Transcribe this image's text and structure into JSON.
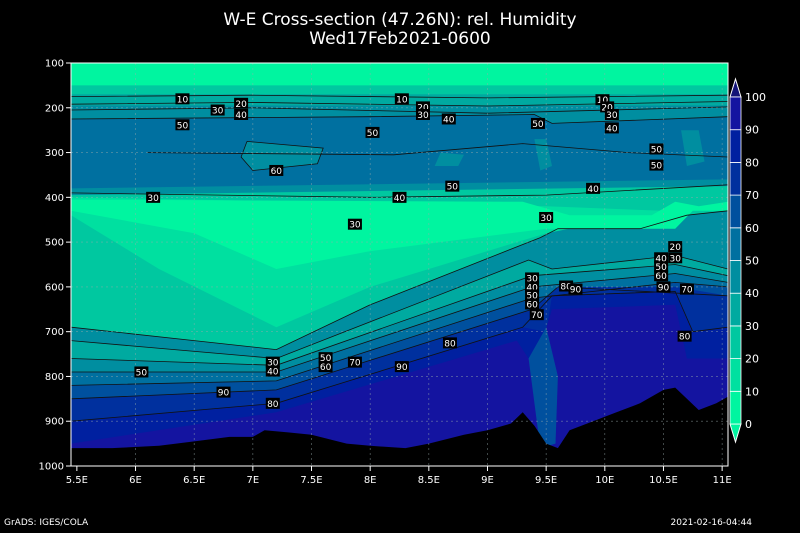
{
  "chart_data": {
    "type": "contour",
    "title": "W-E Cross-section (47.26N): rel. Humidity",
    "subtitle": "Wed17Feb2021-0600",
    "x_ticks": [
      "5.5E",
      "6E",
      "6.5E",
      "7E",
      "7.5E",
      "8E",
      "8.5E",
      "9E",
      "9.5E",
      "10E",
      "10.5E",
      "11E"
    ],
    "xlim": [
      5.45,
      11.05
    ],
    "y_ticks": [
      100,
      200,
      300,
      400,
      500,
      600,
      700,
      800,
      900,
      1000
    ],
    "ylim": [
      100,
      1000
    ],
    "y_axis": "pressure (hPa), increasing downward",
    "colorbar": {
      "levels": [
        0,
        10,
        20,
        30,
        40,
        50,
        60,
        70,
        80,
        90,
        100
      ],
      "colors": [
        "#00f5a0",
        "#00e0a0",
        "#00c8a0",
        "#00aaa0",
        "#008ea0",
        "#0070a0",
        "#00509e",
        "#00309e",
        "#0020a0",
        "#1414a0"
      ],
      "tick_labels": [
        "0",
        "10",
        "20",
        "30",
        "40",
        "50",
        "60",
        "70",
        "80",
        "90",
        "100"
      ]
    },
    "contour_labels": [
      {
        "x": 6.4,
        "p": 180,
        "v": "10"
      },
      {
        "x": 6.7,
        "p": 205,
        "v": "30"
      },
      {
        "x": 6.9,
        "p": 190,
        "v": "20"
      },
      {
        "x": 6.9,
        "p": 215,
        "v": "40"
      },
      {
        "x": 6.4,
        "p": 238,
        "v": "50"
      },
      {
        "x": 8.27,
        "p": 180,
        "v": "10"
      },
      {
        "x": 8.45,
        "p": 198,
        "v": "20"
      },
      {
        "x": 8.45,
        "p": 215,
        "v": "30"
      },
      {
        "x": 8.67,
        "p": 225,
        "v": "40"
      },
      {
        "x": 8.02,
        "p": 255,
        "v": "50"
      },
      {
        "x": 9.43,
        "p": 235,
        "v": "50"
      },
      {
        "x": 9.98,
        "p": 182,
        "v": "10"
      },
      {
        "x": 10.02,
        "p": 198,
        "v": "20"
      },
      {
        "x": 10.06,
        "p": 215,
        "v": "30"
      },
      {
        "x": 10.06,
        "p": 245,
        "v": "40"
      },
      {
        "x": 10.44,
        "p": 292,
        "v": "50"
      },
      {
        "x": 10.44,
        "p": 328,
        "v": "50"
      },
      {
        "x": 7.2,
        "p": 340,
        "v": "60"
      },
      {
        "x": 8.7,
        "p": 375,
        "v": "50"
      },
      {
        "x": 9.9,
        "p": 380,
        "v": "40"
      },
      {
        "x": 6.15,
        "p": 400,
        "v": "30"
      },
      {
        "x": 8.25,
        "p": 400,
        "v": "40"
      },
      {
        "x": 7.87,
        "p": 460,
        "v": "30"
      },
      {
        "x": 9.5,
        "p": 445,
        "v": "30"
      },
      {
        "x": 10.6,
        "p": 510,
        "v": "20"
      },
      {
        "x": 10.48,
        "p": 535,
        "v": "40"
      },
      {
        "x": 10.6,
        "p": 535,
        "v": "30"
      },
      {
        "x": 10.48,
        "p": 555,
        "v": "50"
      },
      {
        "x": 10.48,
        "p": 575,
        "v": "60"
      },
      {
        "x": 9.38,
        "p": 580,
        "v": "30"
      },
      {
        "x": 9.38,
        "p": 600,
        "v": "40"
      },
      {
        "x": 9.38,
        "p": 618,
        "v": "50"
      },
      {
        "x": 9.38,
        "p": 638,
        "v": "60"
      },
      {
        "x": 9.42,
        "p": 662,
        "v": "70"
      },
      {
        "x": 9.67,
        "p": 598,
        "v": "80"
      },
      {
        "x": 9.75,
        "p": 605,
        "v": "90"
      },
      {
        "x": 10.5,
        "p": 600,
        "v": "90"
      },
      {
        "x": 10.7,
        "p": 605,
        "v": "70"
      },
      {
        "x": 10.68,
        "p": 710,
        "v": "80"
      },
      {
        "x": 8.68,
        "p": 725,
        "v": "80"
      },
      {
        "x": 7.17,
        "p": 768,
        "v": "30"
      },
      {
        "x": 7.17,
        "p": 788,
        "v": "40"
      },
      {
        "x": 7.62,
        "p": 758,
        "v": "50"
      },
      {
        "x": 7.62,
        "p": 778,
        "v": "60"
      },
      {
        "x": 7.87,
        "p": 768,
        "v": "70"
      },
      {
        "x": 8.27,
        "p": 778,
        "v": "90"
      },
      {
        "x": 6.05,
        "p": 790,
        "v": "50"
      },
      {
        "x": 6.75,
        "p": 835,
        "v": "90"
      },
      {
        "x": 7.17,
        "p": 860,
        "v": "80"
      }
    ]
  },
  "header": {
    "title": "W-E Cross-section (47.26N): rel. Humidity",
    "subtitle": "Wed17Feb2021-0600"
  },
  "footer": {
    "left": "GrADS: IGES/COLA",
    "right": "2021-02-16-04:44"
  }
}
